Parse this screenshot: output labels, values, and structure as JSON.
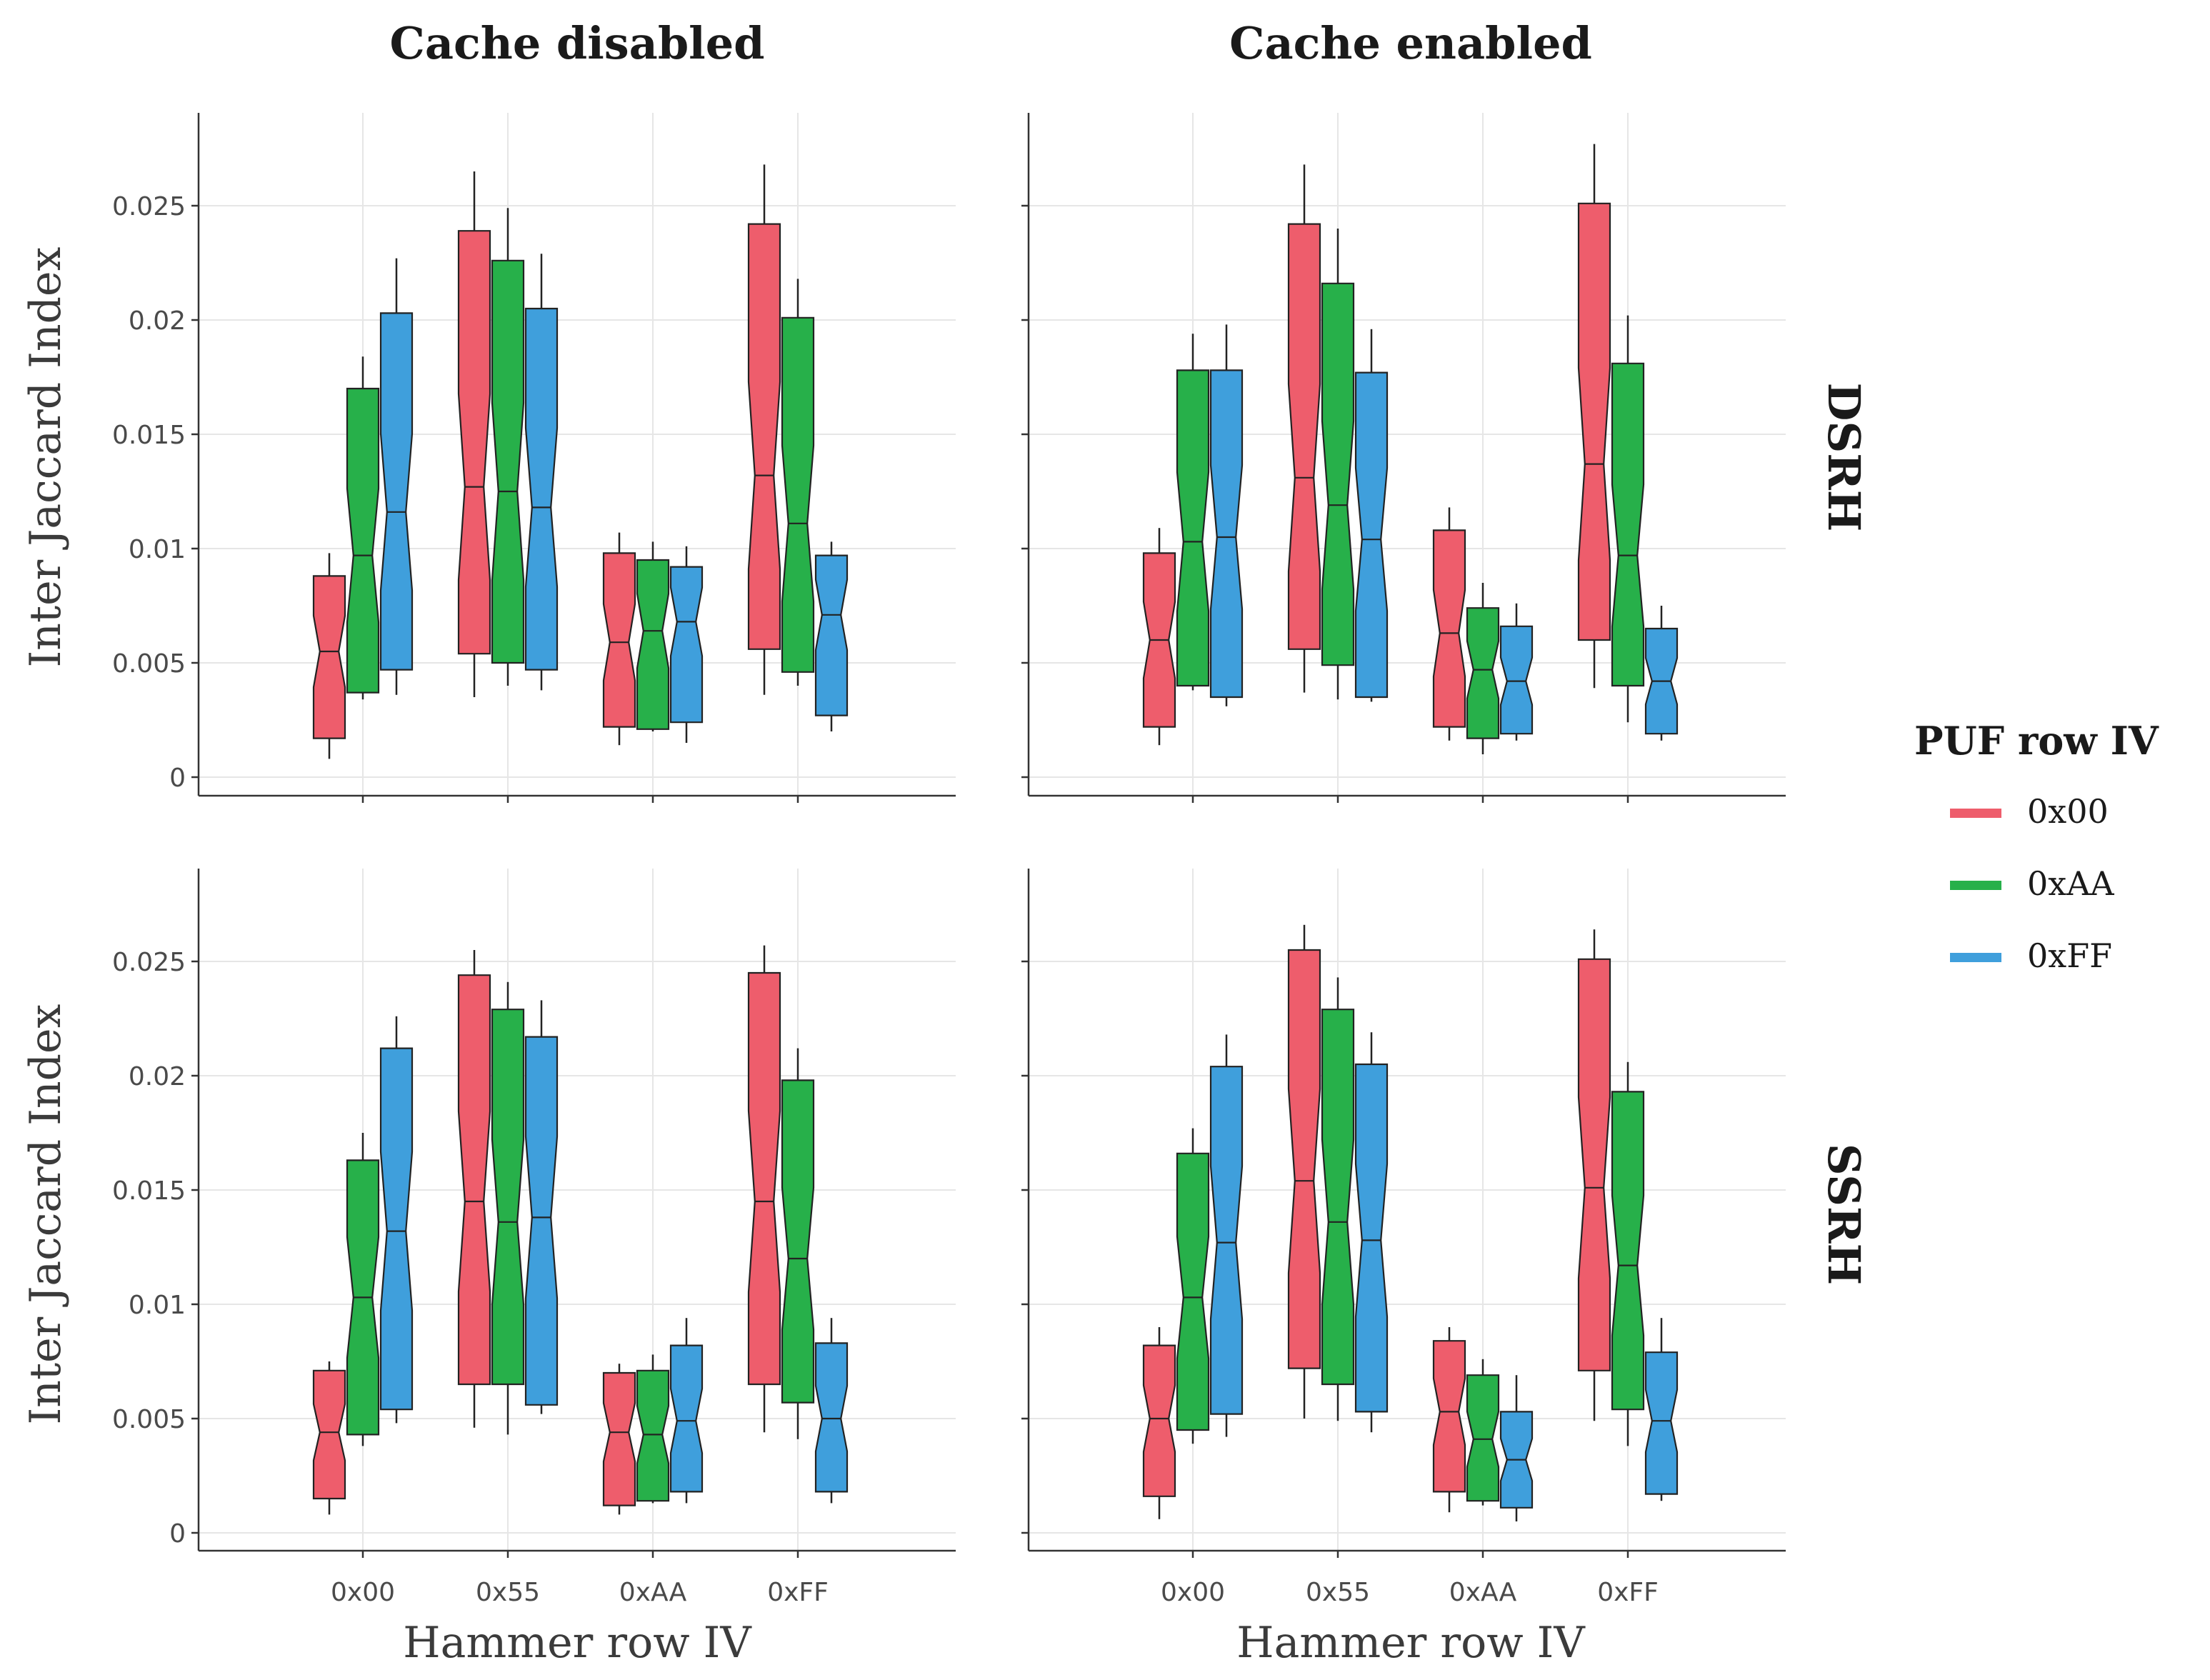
{
  "chart_data": {
    "type": "box",
    "facet_columns": [
      "Cache disabled",
      "Cache enabled"
    ],
    "facet_rows": [
      "DSRH",
      "SSRH"
    ],
    "xlabel": "Hammer row IV",
    "ylabel": "Inter Jaccard Index",
    "categories": [
      "0x00",
      "0x55",
      "0xAA",
      "0xFF"
    ],
    "ylim": [
      -0.0008,
      0.029
    ],
    "yticks": [
      0,
      0.005,
      0.01,
      0.015,
      0.02,
      0.025
    ],
    "ytick_labels": [
      "0",
      "0.005",
      "0.01",
      "0.015",
      "0.02",
      "0.025"
    ],
    "legend": {
      "title": "PUF row IV",
      "entries": [
        {
          "name": "0x00",
          "color": "#ee5d6c"
        },
        {
          "name": "0xAA",
          "color": "#27b04a"
        },
        {
          "name": "0xFF",
          "color": "#3f9fdc"
        }
      ]
    },
    "panels": [
      {
        "col": "Cache disabled",
        "row": "DSRH",
        "groups": [
          {
            "category": "0x00",
            "boxes": [
              {
                "series": "0x00",
                "min": 0.0008,
                "q1": 0.0017,
                "median": 0.0055,
                "q3": 0.0088,
                "max": 0.0098
              },
              {
                "series": "0xAA",
                "min": 0.0034,
                "q1": 0.0037,
                "median": 0.0097,
                "q3": 0.017,
                "max": 0.0184
              },
              {
                "series": "0xFF",
                "min": 0.0036,
                "q1": 0.0047,
                "median": 0.0116,
                "q3": 0.0203,
                "max": 0.0227
              }
            ]
          },
          {
            "category": "0x55",
            "boxes": [
              {
                "series": "0x00",
                "min": 0.0035,
                "q1": 0.0054,
                "median": 0.0127,
                "q3": 0.0239,
                "max": 0.0265
              },
              {
                "series": "0xAA",
                "min": 0.004,
                "q1": 0.005,
                "median": 0.0125,
                "q3": 0.0226,
                "max": 0.0249
              },
              {
                "series": "0xFF",
                "min": 0.0038,
                "q1": 0.0047,
                "median": 0.0118,
                "q3": 0.0205,
                "max": 0.0229
              }
            ]
          },
          {
            "category": "0xAA",
            "boxes": [
              {
                "series": "0x00",
                "min": 0.0014,
                "q1": 0.0022,
                "median": 0.0059,
                "q3": 0.0098,
                "max": 0.0107
              },
              {
                "series": "0xAA",
                "min": 0.002,
                "q1": 0.0021,
                "median": 0.0064,
                "q3": 0.0095,
                "max": 0.0103
              },
              {
                "series": "0xFF",
                "min": 0.0015,
                "q1": 0.0024,
                "median": 0.0068,
                "q3": 0.0092,
                "max": 0.0101
              }
            ]
          },
          {
            "category": "0xFF",
            "boxes": [
              {
                "series": "0x00",
                "min": 0.0036,
                "q1": 0.0056,
                "median": 0.0132,
                "q3": 0.0242,
                "max": 0.0268
              },
              {
                "series": "0xAA",
                "min": 0.004,
                "q1": 0.0046,
                "median": 0.0111,
                "q3": 0.0201,
                "max": 0.0218
              },
              {
                "series": "0xFF",
                "min": 0.002,
                "q1": 0.0027,
                "median": 0.0071,
                "q3": 0.0097,
                "max": 0.0103
              }
            ]
          }
        ]
      },
      {
        "col": "Cache enabled",
        "row": "DSRH",
        "groups": [
          {
            "category": "0x00",
            "boxes": [
              {
                "series": "0x00",
                "min": 0.0014,
                "q1": 0.0022,
                "median": 0.006,
                "q3": 0.0098,
                "max": 0.0109
              },
              {
                "series": "0xAA",
                "min": 0.0038,
                "q1": 0.004,
                "median": 0.0103,
                "q3": 0.0178,
                "max": 0.0194
              },
              {
                "series": "0xFF",
                "min": 0.0031,
                "q1": 0.0035,
                "median": 0.0105,
                "q3": 0.0178,
                "max": 0.0198
              }
            ]
          },
          {
            "category": "0x55",
            "boxes": [
              {
                "series": "0x00",
                "min": 0.0037,
                "q1": 0.0056,
                "median": 0.0131,
                "q3": 0.0242,
                "max": 0.0268
              },
              {
                "series": "0xAA",
                "min": 0.0034,
                "q1": 0.0049,
                "median": 0.0119,
                "q3": 0.0216,
                "max": 0.024
              },
              {
                "series": "0xFF",
                "min": 0.0033,
                "q1": 0.0035,
                "median": 0.0104,
                "q3": 0.0177,
                "max": 0.0196
              }
            ]
          },
          {
            "category": "0xAA",
            "boxes": [
              {
                "series": "0x00",
                "min": 0.0016,
                "q1": 0.0022,
                "median": 0.0063,
                "q3": 0.0108,
                "max": 0.0118
              },
              {
                "series": "0xAA",
                "min": 0.001,
                "q1": 0.0017,
                "median": 0.0047,
                "q3": 0.0074,
                "max": 0.0085
              },
              {
                "series": "0xFF",
                "min": 0.0016,
                "q1": 0.0019,
                "median": 0.0042,
                "q3": 0.0066,
                "max": 0.0076
              }
            ]
          },
          {
            "category": "0xFF",
            "boxes": [
              {
                "series": "0x00",
                "min": 0.0039,
                "q1": 0.006,
                "median": 0.0137,
                "q3": 0.0251,
                "max": 0.0277
              },
              {
                "series": "0xAA",
                "min": 0.0024,
                "q1": 0.004,
                "median": 0.0097,
                "q3": 0.0181,
                "max": 0.0202
              },
              {
                "series": "0xFF",
                "min": 0.0016,
                "q1": 0.0019,
                "median": 0.0042,
                "q3": 0.0065,
                "max": 0.0075
              }
            ]
          }
        ]
      },
      {
        "col": "Cache disabled",
        "row": "SSRH",
        "groups": [
          {
            "category": "0x00",
            "boxes": [
              {
                "series": "0x00",
                "min": 0.0008,
                "q1": 0.0015,
                "median": 0.0044,
                "q3": 0.0071,
                "max": 0.0075
              },
              {
                "series": "0xAA",
                "min": 0.0038,
                "q1": 0.0043,
                "median": 0.0103,
                "q3": 0.0163,
                "max": 0.0175
              },
              {
                "series": "0xFF",
                "min": 0.0048,
                "q1": 0.0054,
                "median": 0.0132,
                "q3": 0.0212,
                "max": 0.0226
              }
            ]
          },
          {
            "category": "0x55",
            "boxes": [
              {
                "series": "0x00",
                "min": 0.0046,
                "q1": 0.0065,
                "median": 0.0145,
                "q3": 0.0244,
                "max": 0.0255
              },
              {
                "series": "0xAA",
                "min": 0.0043,
                "q1": 0.0065,
                "median": 0.0136,
                "q3": 0.0229,
                "max": 0.0241
              },
              {
                "series": "0xFF",
                "min": 0.0052,
                "q1": 0.0056,
                "median": 0.0138,
                "q3": 0.0217,
                "max": 0.0233
              }
            ]
          },
          {
            "category": "0xAA",
            "boxes": [
              {
                "series": "0x00",
                "min": 0.0008,
                "q1": 0.0012,
                "median": 0.0044,
                "q3": 0.007,
                "max": 0.0074
              },
              {
                "series": "0xAA",
                "min": 0.0013,
                "q1": 0.0014,
                "median": 0.0043,
                "q3": 0.0071,
                "max": 0.0078
              },
              {
                "series": "0xFF",
                "min": 0.0013,
                "q1": 0.0018,
                "median": 0.0049,
                "q3": 0.0082,
                "max": 0.0094
              }
            ]
          },
          {
            "category": "0xFF",
            "boxes": [
              {
                "series": "0x00",
                "min": 0.0044,
                "q1": 0.0065,
                "median": 0.0145,
                "q3": 0.0245,
                "max": 0.0257
              },
              {
                "series": "0xAA",
                "min": 0.0041,
                "q1": 0.0057,
                "median": 0.012,
                "q3": 0.0198,
                "max": 0.0212
              },
              {
                "series": "0xFF",
                "min": 0.0013,
                "q1": 0.0018,
                "median": 0.005,
                "q3": 0.0083,
                "max": 0.0094
              }
            ]
          }
        ]
      },
      {
        "col": "Cache enabled",
        "row": "SSRH",
        "groups": [
          {
            "category": "0x00",
            "boxes": [
              {
                "series": "0x00",
                "min": 0.0006,
                "q1": 0.0016,
                "median": 0.005,
                "q3": 0.0082,
                "max": 0.009
              },
              {
                "series": "0xAA",
                "min": 0.0039,
                "q1": 0.0045,
                "median": 0.0103,
                "q3": 0.0166,
                "max": 0.0177
              },
              {
                "series": "0xFF",
                "min": 0.0042,
                "q1": 0.0052,
                "median": 0.0127,
                "q3": 0.0204,
                "max": 0.0218
              }
            ]
          },
          {
            "category": "0x55",
            "boxes": [
              {
                "series": "0x00",
                "min": 0.005,
                "q1": 0.0072,
                "median": 0.0154,
                "q3": 0.0255,
                "max": 0.0266
              },
              {
                "series": "0xAA",
                "min": 0.0049,
                "q1": 0.0065,
                "median": 0.0136,
                "q3": 0.0229,
                "max": 0.0243
              },
              {
                "series": "0xFF",
                "min": 0.0044,
                "q1": 0.0053,
                "median": 0.0128,
                "q3": 0.0205,
                "max": 0.0219
              }
            ]
          },
          {
            "category": "0xAA",
            "boxes": [
              {
                "series": "0x00",
                "min": 0.0009,
                "q1": 0.0018,
                "median": 0.0053,
                "q3": 0.0084,
                "max": 0.009
              },
              {
                "series": "0xAA",
                "min": 0.0012,
                "q1": 0.0014,
                "median": 0.0041,
                "q3": 0.0069,
                "max": 0.0076
              },
              {
                "series": "0xFF",
                "min": 0.0005,
                "q1": 0.0011,
                "median": 0.0032,
                "q3": 0.0053,
                "max": 0.0069
              }
            ]
          },
          {
            "category": "0xFF",
            "boxes": [
              {
                "series": "0x00",
                "min": 0.0049,
                "q1": 0.0071,
                "median": 0.0151,
                "q3": 0.0251,
                "max": 0.0264
              },
              {
                "series": "0xAA",
                "min": 0.0038,
                "q1": 0.0054,
                "median": 0.0117,
                "q3": 0.0193,
                "max": 0.0206
              },
              {
                "series": "0xFF",
                "min": 0.0014,
                "q1": 0.0017,
                "median": 0.0049,
                "q3": 0.0079,
                "max": 0.0094
              }
            ]
          }
        ]
      }
    ]
  }
}
